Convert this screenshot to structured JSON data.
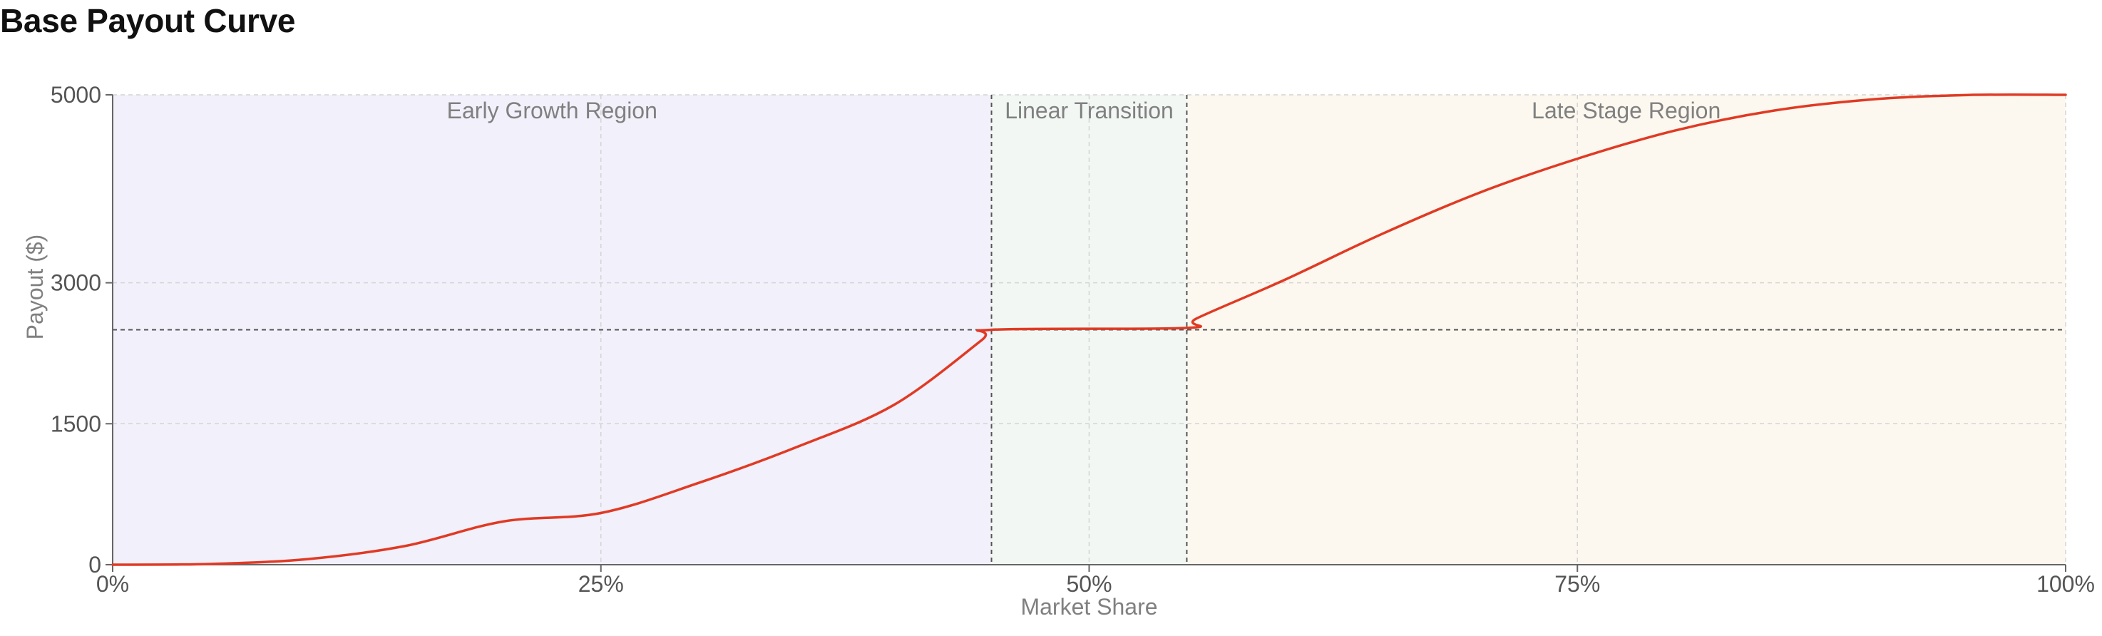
{
  "chart_data": {
    "type": "line",
    "title": "Base Payout Curve",
    "xlabel": "Market Share",
    "ylabel": "Payout ($)",
    "xlim": [
      0,
      100
    ],
    "ylim": [
      0,
      5000
    ],
    "x_ticks": [
      0,
      25,
      50,
      75,
      100
    ],
    "x_tick_labels": [
      "0%",
      "25%",
      "50%",
      "75%",
      "100%"
    ],
    "y_ticks": [
      0,
      1500,
      3000,
      5000
    ],
    "y_tick_labels": [
      "0",
      "1500",
      "3000",
      "5000"
    ],
    "grid": true,
    "series": [
      {
        "color": "#e03a24",
        "x": [
          0,
          5,
          10,
          15,
          20,
          25,
          30,
          35,
          40,
          44.5,
          45,
          55,
          55.5,
          60,
          65,
          70,
          75,
          80,
          85,
          90,
          95,
          100
        ],
        "y": [
          0,
          8,
          60,
          200,
          460,
          550,
          870,
          1250,
          1700,
          2390,
          2500,
          2520,
          2620,
          3030,
          3520,
          3960,
          4320,
          4620,
          4830,
          4950,
          4998,
          5000
        ]
      }
    ],
    "reference_lines": {
      "horizontal_y": 2500,
      "vertical_x": [
        45,
        55
      ],
      "style": "dashed"
    },
    "regions": [
      {
        "label": "Early Growth Region",
        "x_start": 0,
        "x_end": 45,
        "color": "#f2f0fa"
      },
      {
        "label": "Linear Transition",
        "x_start": 45,
        "x_end": 55,
        "color": "#f2f7f3"
      },
      {
        "label": "Late Stage Region",
        "x_start": 55,
        "x_end": 100,
        "color": "#fdf8ef"
      }
    ]
  }
}
